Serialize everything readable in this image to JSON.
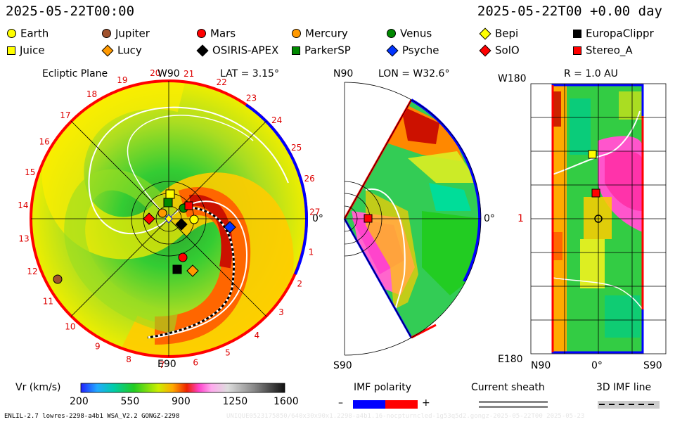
{
  "header": {
    "left_time": "2025-05-22T00:00",
    "right_time": "2025-05-22T00 +0.00 day"
  },
  "legend": [
    {
      "label": "Earth",
      "marker": "circle",
      "color": "#ffff00"
    },
    {
      "label": "Jupiter",
      "marker": "circle",
      "color": "#a0522d"
    },
    {
      "label": "Mars",
      "marker": "circle",
      "color": "#ff0000"
    },
    {
      "label": "Mercury",
      "marker": "circle",
      "color": "#ff9900"
    },
    {
      "label": "Venus",
      "marker": "circle",
      "color": "#008800"
    },
    {
      "label": "Bepi",
      "marker": "diamond",
      "color": "#ffff00"
    },
    {
      "label": "EuropaClippr",
      "marker": "square",
      "color": "#000000"
    },
    {
      "label": "Juice",
      "marker": "square",
      "color": "#ffff00"
    },
    {
      "label": "Lucy",
      "marker": "diamond",
      "color": "#ff9900"
    },
    {
      "label": "OSIRIS-APEX",
      "marker": "diamond",
      "color": "#000000"
    },
    {
      "label": "ParkerSP",
      "marker": "square",
      "color": "#008800"
    },
    {
      "label": "Psyche",
      "marker": "diamond",
      "color": "#0033ff"
    },
    {
      "label": "SolO",
      "marker": "diamond",
      "color": "#ff0000"
    },
    {
      "label": "Stereo_A",
      "marker": "square",
      "color": "#ff0000"
    }
  ],
  "ecliptic": {
    "title": "Ecliptic Plane",
    "top": "W90",
    "bottom": "E90",
    "right": "0°",
    "lat": "LAT = 3.15°",
    "carrington_numbers": [
      "1",
      "2",
      "3",
      "4",
      "5",
      "6",
      "7",
      "8",
      "9",
      "10",
      "11",
      "12",
      "13",
      "14",
      "15",
      "16",
      "17",
      "18",
      "19",
      "20",
      "21",
      "22",
      "23",
      "24",
      "25",
      "26",
      "27"
    ]
  },
  "meridional": {
    "top": "N90",
    "bottom": "S90",
    "right": "0°",
    "lon": "LON = W32.6°"
  },
  "radial": {
    "top_left": "W180",
    "bottom_left": "E180",
    "title": "R = 1.0 AU",
    "y_mid": "1",
    "x_left": "N90",
    "x_mid": "0°",
    "x_right": "S90"
  },
  "colorbar": {
    "label": "Vr (km/s)",
    "ticks": [
      "200",
      "550",
      "900",
      "1250",
      "1600"
    ]
  },
  "imf": {
    "label": "IMF polarity",
    "minus": "–",
    "plus": "+"
  },
  "sheath": {
    "label": "Current sheath"
  },
  "imf3d": {
    "label": "3D IMF line"
  },
  "footer": {
    "left": "ENLIL-2.7 lowres-2298-a4b1 WSA_V2.2 GONGZ-2298",
    "right": "UNIQUE0523175850/640x30x90x1.2298-a4b1.16-nocpturncled-1g53q5d2.gongz-2025-05-22T00 2025-05-23"
  },
  "colors": {
    "sw_fast": "#ff40c0",
    "sw_mid": "#ff8800",
    "sw_slow": "#00cc60",
    "pol_neg": "#0000ff",
    "pol_pos": "#ff0000"
  }
}
